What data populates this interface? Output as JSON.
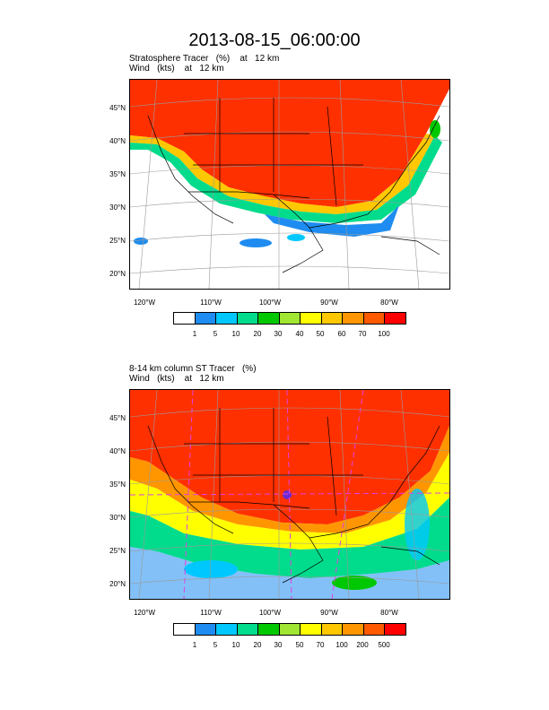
{
  "title": "2013-08-15_06:00:00",
  "panels": [
    {
      "header_line1": "Stratosphere Tracer   (%)    at   12 km",
      "header_line2": "Wind   (kts)    at   12 km",
      "lat_labels": [
        "45°N",
        "40°N",
        "35°N",
        "30°N",
        "25°N",
        "20°N"
      ],
      "lon_labels": [
        "120°W",
        "110°W",
        "100°W",
        "90°W",
        "80°W"
      ],
      "colorbar_labels": [
        "1",
        "5",
        "10",
        "20",
        "30",
        "40",
        "50",
        "60",
        "70",
        "100"
      ],
      "colorbar_colors": [
        "#ffffff",
        "#1e8cf0",
        "#00c8ff",
        "#00dc8c",
        "#00c800",
        "#a0e632",
        "#ffff00",
        "#ffc800",
        "#ff9600",
        "#ff5a00",
        "#ff0000"
      ]
    },
    {
      "header_line1": "8-14 km column ST Tracer   (%)",
      "header_line2": "Wind   (kts)    at   12 km",
      "lat_labels": [
        "45°N",
        "40°N",
        "35°N",
        "30°N",
        "25°N",
        "20°N"
      ],
      "lon_labels": [
        "120°W",
        "110°W",
        "100°W",
        "90°W",
        "80°W"
      ],
      "colorbar_labels": [
        "1",
        "5",
        "10",
        "20",
        "30",
        "50",
        "70",
        "100",
        "200",
        "500"
      ],
      "colorbar_colors": [
        "#ffffff",
        "#1e8cf0",
        "#00c8ff",
        "#00dc8c",
        "#00c800",
        "#a0e632",
        "#ffff00",
        "#ffc800",
        "#ff9600",
        "#ff5a00",
        "#ff0000"
      ]
    }
  ]
}
